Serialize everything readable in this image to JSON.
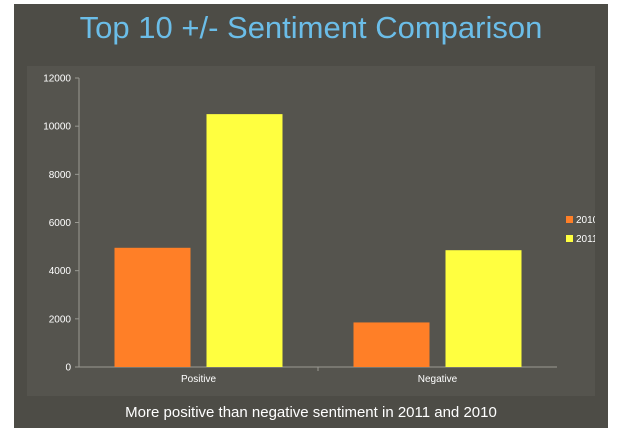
{
  "title": "Top 10 +/- Sentiment Comparison",
  "caption": "More positive than negative sentiment in 2011 and 2010",
  "colors": {
    "background": "#4d4c46",
    "plot_background": "#55544e",
    "title": "#6bbde8",
    "axis": "#9a9a93",
    "text": "#ffffff"
  },
  "chart_data": {
    "type": "bar",
    "categories": [
      "Positive",
      "Negative"
    ],
    "series": [
      {
        "name": "2010",
        "color": "#ff7f27",
        "values": [
          4950,
          1850
        ]
      },
      {
        "name": "2011",
        "color": "#ffff40",
        "values": [
          10500,
          4850
        ]
      }
    ],
    "ylim": [
      0,
      12000
    ],
    "yticks": [
      0,
      2000,
      4000,
      6000,
      8000,
      10000,
      12000
    ],
    "grid": false,
    "legend": "right"
  }
}
